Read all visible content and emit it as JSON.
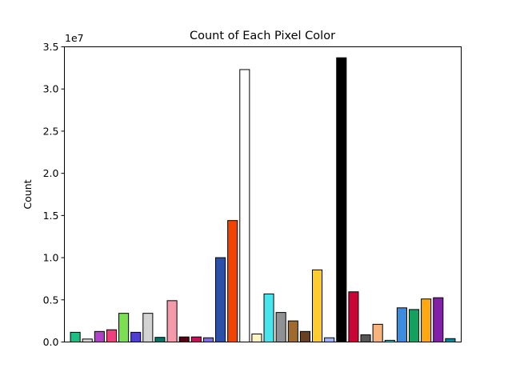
{
  "chart_data": {
    "type": "bar",
    "title": "Count of Each Pixel Color",
    "xlabel": "",
    "ylabel": "Count",
    "scale_label": "1e7",
    "ylim": [
      0,
      35
    ],
    "yticks": [
      "0.0",
      "0.5",
      "1.0",
      "1.5",
      "2.0",
      "2.5",
      "3.0",
      "3.5"
    ],
    "x_ticks_visible": false,
    "grid": false,
    "legend": "none",
    "values": [
      1.15,
      0.35,
      1.25,
      1.45,
      3.4,
      1.15,
      3.4,
      0.55,
      4.9,
      0.6,
      0.6,
      0.5,
      10.0,
      14.4,
      32.3,
      0.95,
      5.7,
      3.5,
      2.5,
      1.25,
      8.55,
      0.5,
      33.7,
      5.95,
      0.85,
      2.1,
      0.2,
      4.05,
      3.85,
      5.1,
      5.25,
      0.4
    ],
    "colors": [
      "#1dbf84",
      "#d8d8d8",
      "#b042c8",
      "#ee3f7e",
      "#7bdf52",
      "#4f3ecf",
      "#d3d3d3",
      "#007466",
      "#f59aaa",
      "#5a0016",
      "#c0135a",
      "#7c6ee6",
      "#2a50a8",
      "#f24400",
      "#ffffff",
      "#fff5c2",
      "#47e6ee",
      "#8f9294",
      "#a06a2f",
      "#674121",
      "#ffcc30",
      "#9cb5ff",
      "#000000",
      "#c90538",
      "#565656",
      "#f7b37b",
      "#36c5c8",
      "#3b8ce0",
      "#12a160",
      "#ffa812",
      "#8021a8",
      "#008a9c"
    ]
  }
}
